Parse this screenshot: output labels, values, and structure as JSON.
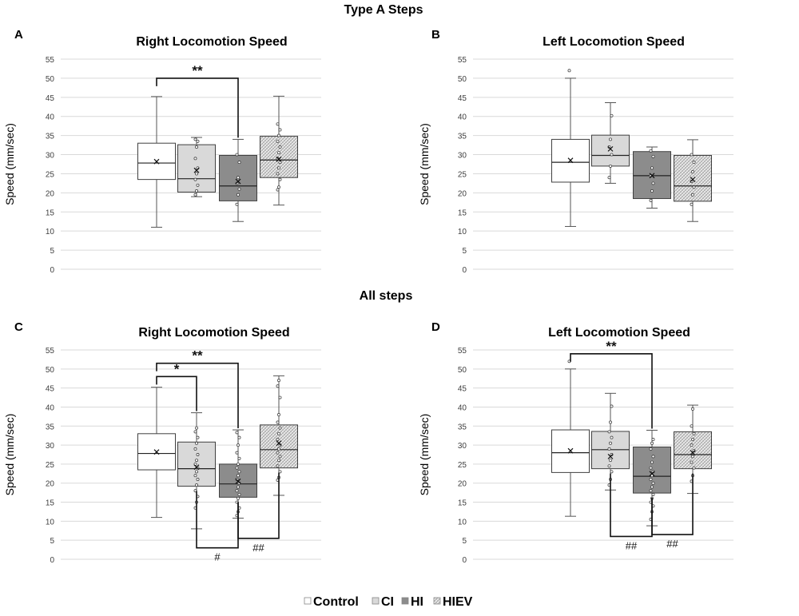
{
  "figure": {
    "section_top": "Type A Steps",
    "section_bottom": "All steps",
    "legend": [
      {
        "label": "Control",
        "fill": "#ffffff",
        "pattern": false
      },
      {
        "label": "CI",
        "fill": "#d9d9d9",
        "pattern": false
      },
      {
        "label": "HI",
        "fill": "#8c8c8c",
        "pattern": false
      },
      {
        "label": "HIEV",
        "fill": "#e6e6e6",
        "pattern": true
      }
    ]
  },
  "colors": {
    "control": "#ffffff",
    "ci": "#d9d9d9",
    "hi": "#8c8c8c",
    "hiev": "#e6e6e6",
    "grid": "#d9d9d9",
    "outline": "#404040"
  },
  "chart_data": [
    {
      "panel": "A",
      "type": "box",
      "title": "Right Locomotion Speed",
      "ylabel": "Speed (mm/sec)",
      "ylim": [
        0,
        55
      ],
      "yticks": [
        0,
        5,
        10,
        15,
        20,
        25,
        30,
        35,
        40,
        45,
        50,
        55
      ],
      "groups": [
        "Control",
        "CI",
        "HI",
        "HIEV"
      ],
      "boxes": [
        {
          "min": 11,
          "q1": 23.5,
          "median": 27.8,
          "q3": 33,
          "max": 45.2,
          "mean": 28.2,
          "points": []
        },
        {
          "min": 19,
          "q1": 20.2,
          "median": 23.7,
          "q3": 32.6,
          "max": 34.5,
          "mean": 25.9,
          "points": [
            19.5,
            20.5,
            22,
            23.5,
            25,
            26.5,
            29,
            32,
            33.5,
            34
          ]
        },
        {
          "min": 12.5,
          "q1": 17.9,
          "median": 21.8,
          "q3": 29.8,
          "max": 34,
          "mean": 23,
          "points": [
            17,
            19.5,
            21,
            22.5,
            24,
            28,
            30
          ]
        },
        {
          "min": 16.8,
          "q1": 24,
          "median": 28.6,
          "q3": 34.8,
          "max": 45.3,
          "mean": 28.8,
          "points": [
            20.8,
            21.5,
            23.5,
            25,
            26.5,
            28,
            29,
            30.5,
            32,
            33.5,
            35,
            36.5,
            38
          ]
        }
      ],
      "significance": [
        {
          "label": "**",
          "from": 0,
          "to": 2,
          "level": 50
        }
      ],
      "hash_marks": []
    },
    {
      "panel": "B",
      "type": "box",
      "title": "Left Locomotion Speed",
      "ylabel": "Speed (mm/sec)",
      "ylim": [
        0,
        55
      ],
      "yticks": [
        0,
        5,
        10,
        15,
        20,
        25,
        30,
        35,
        40,
        45,
        50,
        55
      ],
      "groups": [
        "Control",
        "CI",
        "HI",
        "HIEV"
      ],
      "boxes": [
        {
          "min": 11.2,
          "q1": 22.8,
          "median": 28,
          "q3": 34,
          "max": 50,
          "mean": 28.5,
          "points": [
            52
          ]
        },
        {
          "min": 22.5,
          "q1": 27,
          "median": 29.8,
          "q3": 35.1,
          "max": 43.6,
          "mean": 31.5,
          "points": [
            24,
            27,
            30,
            32,
            34,
            40.2
          ]
        },
        {
          "min": 16,
          "q1": 18.5,
          "median": 24.5,
          "q3": 30.8,
          "max": 32,
          "mean": 24.5,
          "points": [
            18,
            20.5,
            22.5,
            24.5,
            26.5,
            29.5,
            31
          ]
        },
        {
          "min": 12.5,
          "q1": 17.8,
          "median": 21.8,
          "q3": 29.8,
          "max": 33.9,
          "mean": 23.5,
          "points": [
            17,
            19.5,
            21.5,
            23,
            25.5,
            28,
            30
          ]
        }
      ],
      "significance": [],
      "hash_marks": []
    },
    {
      "panel": "C",
      "type": "box",
      "title": "Right Locomotion Speed",
      "ylabel": "Speed (mm/sec)",
      "ylim": [
        0,
        55
      ],
      "yticks": [
        0,
        5,
        10,
        15,
        20,
        25,
        30,
        35,
        40,
        45,
        50,
        55
      ],
      "groups": [
        "Control",
        "CI",
        "HI",
        "HIEV"
      ],
      "boxes": [
        {
          "min": 11,
          "q1": 23.5,
          "median": 27.8,
          "q3": 33,
          "max": 45.2,
          "mean": 28.2,
          "points": []
        },
        {
          "min": 8,
          "q1": 19.2,
          "median": 23.8,
          "q3": 30.8,
          "max": 38.5,
          "mean": 24.2,
          "points": [
            13.5,
            15,
            16.5,
            18,
            19.5,
            21,
            22,
            23,
            24,
            25,
            26,
            27.5,
            29,
            30.5,
            32,
            33.5,
            34.5
          ]
        },
        {
          "min": 10.8,
          "q1": 16.3,
          "median": 19.8,
          "q3": 25,
          "max": 34,
          "mean": 20.5,
          "points": [
            11.5,
            12.5,
            13.5,
            15,
            16,
            17,
            18,
            19,
            20,
            21,
            22,
            23,
            24,
            25,
            26.5,
            28,
            30,
            32,
            33.3
          ]
        },
        {
          "min": 16.8,
          "q1": 24,
          "median": 28.8,
          "q3": 35.3,
          "max": 48.2,
          "mean": 30.5,
          "points": [
            20.8,
            21.5,
            23,
            24.5,
            26,
            27,
            28,
            29,
            30,
            31.5,
            33,
            34.5,
            36,
            38,
            42.5,
            45.5,
            47
          ]
        }
      ],
      "significance": [
        {
          "label": "**",
          "from": 0,
          "to": 2,
          "level": 51.5
        },
        {
          "label": "*",
          "from": 0,
          "to": 1,
          "level": 48
        }
      ],
      "hash_marks": [
        {
          "label": "#",
          "from": 1,
          "to": 2,
          "level": 3
        },
        {
          "label": "##",
          "from": 2,
          "to": 3,
          "level": 5.5
        }
      ]
    },
    {
      "panel": "D",
      "type": "box",
      "title": "Left Locomotion Speed",
      "ylabel": "Speed (mm/sec)",
      "ylim": [
        0,
        55
      ],
      "yticks": [
        0,
        5,
        10,
        15,
        20,
        25,
        30,
        35,
        40,
        45,
        50,
        55
      ],
      "groups": [
        "Control",
        "CI",
        "HI",
        "HIEV"
      ],
      "boxes": [
        {
          "min": 11.3,
          "q1": 22.8,
          "median": 28,
          "q3": 34,
          "max": 50,
          "mean": 28.5,
          "points": [
            52
          ]
        },
        {
          "min": 18.2,
          "q1": 23.8,
          "median": 28.8,
          "q3": 33.6,
          "max": 43.6,
          "mean": 27,
          "points": [
            19.5,
            21,
            23,
            24.5,
            26,
            27.5,
            29,
            30.5,
            32,
            33.5,
            36,
            40.2
          ]
        },
        {
          "min": 8.8,
          "q1": 17.4,
          "median": 21.8,
          "q3": 29.5,
          "max": 33.9,
          "mean": 22.5,
          "points": [
            10.5,
            12.5,
            14,
            15,
            16,
            17,
            18,
            19,
            20,
            21,
            22,
            23,
            24,
            25.5,
            27,
            29,
            30.5,
            31.5
          ]
        },
        {
          "min": 17.3,
          "q1": 23.8,
          "median": 27.5,
          "q3": 33.5,
          "max": 40.5,
          "mean": 28,
          "points": [
            20.5,
            22,
            24,
            25.5,
            27,
            28.5,
            30,
            31.5,
            33,
            35,
            39.5
          ]
        }
      ],
      "significance": [
        {
          "label": "**",
          "from": 0,
          "to": 2,
          "level": 54
        }
      ],
      "hash_marks": [
        {
          "label": "##",
          "from": 1,
          "to": 2,
          "level": 6
        },
        {
          "label": "##",
          "from": 2,
          "to": 3,
          "level": 6.5
        }
      ]
    }
  ]
}
